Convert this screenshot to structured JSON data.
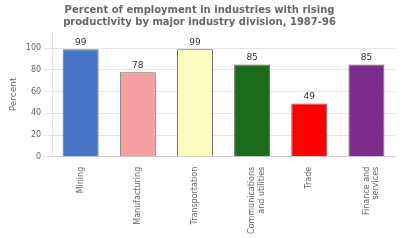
{
  "chart_data": {
    "type": "bar",
    "title": "Percent of employment in industries with rising\nproductivity by major industry division, 1987-96",
    "categories": [
      "Mining",
      "Manufacturing",
      "Transportation",
      "Communications\nand utilities",
      "Trade",
      "Finance and\nservices"
    ],
    "values": [
      99,
      78,
      99,
      85,
      49,
      85
    ],
    "colors": [
      "#4472C4",
      "#F4A0A0",
      "#FFFFC0",
      "#1A6B1A",
      "#FF0000",
      "#7B2D8B"
    ],
    "ylabel": "Percent",
    "ylim": [
      0,
      115
    ],
    "yticks": [
      0,
      20,
      40,
      60,
      80,
      100
    ],
    "grid": true,
    "data_labels": true
  }
}
